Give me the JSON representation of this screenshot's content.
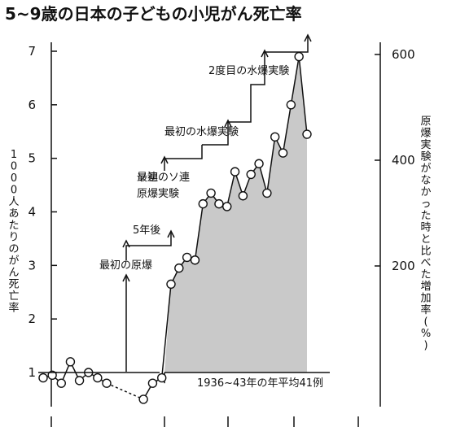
{
  "title": "5~9歳の日本の子どもの小児がん死亡率",
  "chart_data": {
    "type": "line",
    "ylabel": "1000人あたりのがん死亡率",
    "y2label": "原爆実験がなかった時と比べた増加率(%)",
    "ylim": [
      0,
      7.3
    ],
    "yticks": [
      1,
      2,
      3,
      4,
      5,
      6,
      7
    ],
    "y2lim": [
      0,
      620
    ],
    "y2ticks": [
      200,
      400,
      600
    ],
    "x": [
      1936,
      1937,
      1938,
      1939,
      1940,
      1941,
      1942,
      1943,
      1947,
      1948,
      1949,
      1950,
      1951,
      1952,
      1953,
      1954,
      1955,
      1956,
      1957,
      1958,
      1959,
      1960,
      1961,
      1962,
      1963,
      1964,
      1965,
      1966,
      1967,
      1968
    ],
    "series": [
      {
        "values": [
          0.9,
          0.95,
          0.8,
          1.2,
          0.85,
          1.0,
          0.9,
          0.8,
          0.5,
          0.8,
          0.9,
          2.65,
          2.95,
          3.15,
          3.1,
          4.15,
          4.35,
          4.15,
          4.1,
          4.75,
          4.3,
          4.7,
          4.9,
          4.35,
          5.4,
          5.1,
          6.0,
          6.9,
          5.45,
          null
        ]
      }
    ],
    "baseline": {
      "value": 1.0,
      "label": "1936~43年の年平均41例"
    },
    "annotations": [
      {
        "label": "最初の原爆",
        "x": 1945
      },
      {
        "label": "5年後",
        "x": 1950
      },
      {
        "label": "最初のソ連原爆実験",
        "x": 1949
      },
      {
        "label": "最初の水爆実験",
        "x": 1952
      },
      {
        "label": "2度目の水爆実験",
        "x": 1954
      }
    ]
  }
}
